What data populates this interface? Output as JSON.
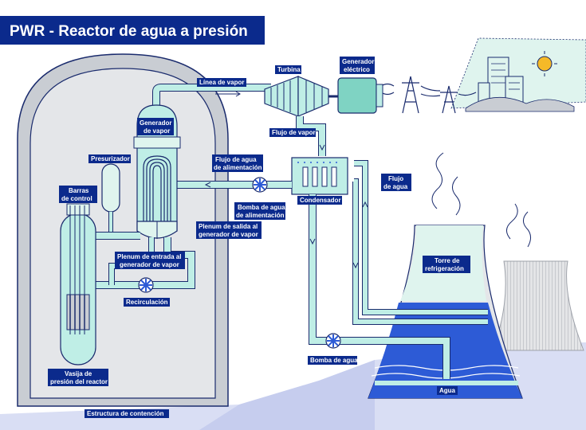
{
  "title": "PWR - Reactor de agua a presión",
  "labels": {
    "linea_vapor": "Línea de vapor",
    "turbina": "Turbina",
    "generador_electrico_1": "Generador",
    "generador_electrico_2": "eléctrico",
    "flujo_vapor": "Flujo de vapor",
    "generador_vapor_1": "Generador",
    "generador_vapor_2": "de vapor",
    "presurizador": "Presurizador",
    "flujo_agua_alim_1": "Flujo de agua",
    "flujo_agua_alim_2": "de alimentación",
    "flujo_agua_1": "Flujo",
    "flujo_agua_2": "de agua",
    "barras_1": "Barras",
    "barras_2": "de control",
    "bomba_alim_1": "Bomba de agua",
    "bomba_alim_2": "de alimentación",
    "condensador": "Condensador",
    "plenum_salida_1": "Plenum de salida al",
    "plenum_salida_2": "generador de vapor",
    "plenum_entrada_1": "Plenum de entrada al",
    "plenum_entrada_2": "generador de vapor",
    "torre_1": "Torre de",
    "torre_2": "refrigeración",
    "recirculacion": "Recirculación",
    "vasija_1": "Vasija de",
    "vasija_2": "presión del reactor",
    "bomba_agua": "Bomba de agua",
    "agua": "Agua",
    "estructura": "Estructura de contención"
  },
  "colors": {
    "navy": "#0b2a8c",
    "pipe": "#bfeee6",
    "outline": "#1a2b6d",
    "containment": "#c9cdd3",
    "tower": "#dddedf",
    "water": "#2d5bd6"
  }
}
